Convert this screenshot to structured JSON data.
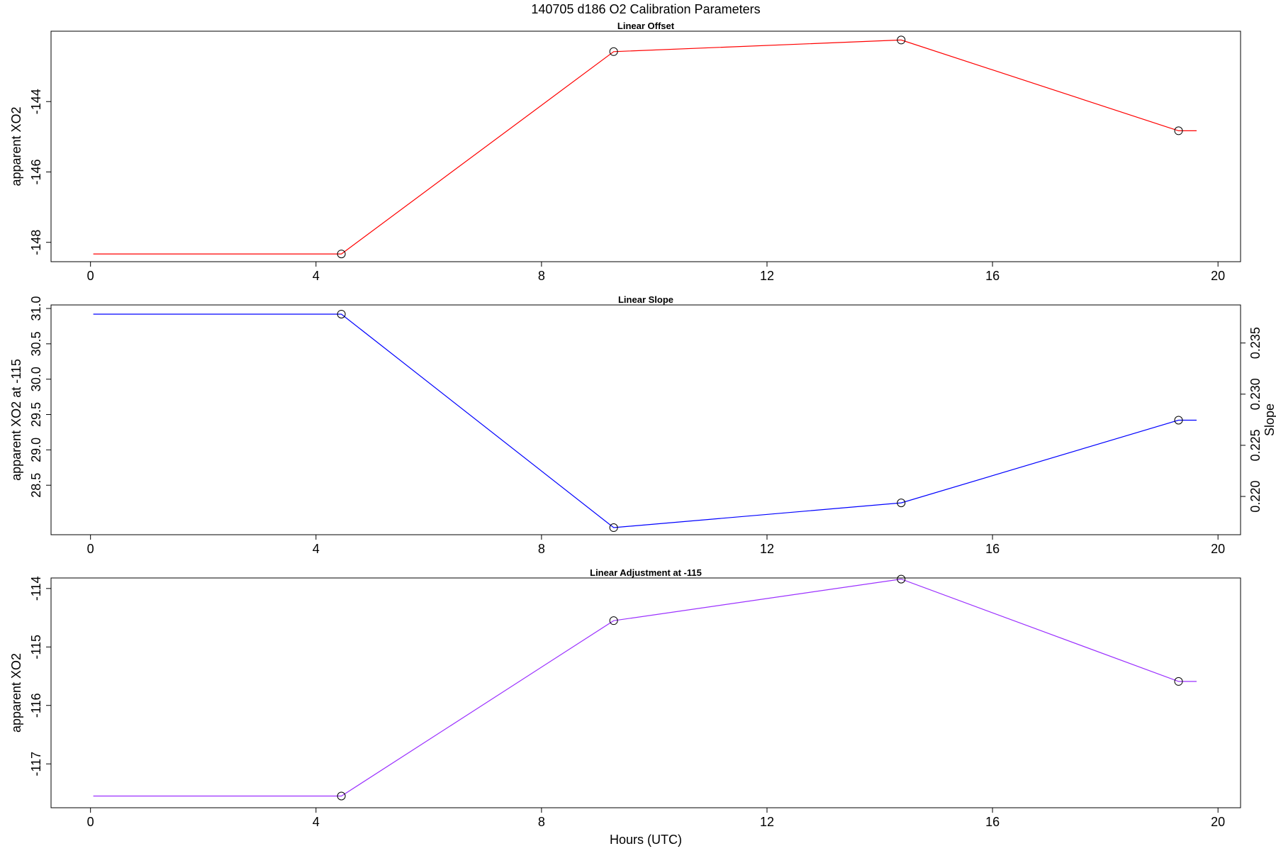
{
  "figure": {
    "title": "140705   d186   O2 Calibration Parameters",
    "xlabel": "Hours (UTC)"
  },
  "chart_data": [
    {
      "type": "line",
      "title": "Linear Offset",
      "xlabel": "",
      "ylabel": "apparent XO2",
      "color": "#ff0000",
      "xlim": [
        -0.7,
        20.4
      ],
      "ylim": [
        -148.55,
        -142.0
      ],
      "xticks": [
        0,
        4,
        8,
        12,
        16,
        20
      ],
      "yticks": [
        -148,
        -146,
        -144
      ],
      "x": [
        4.45,
        9.28,
        14.38,
        19.3
      ],
      "values": [
        -148.33,
        -142.58,
        -142.25,
        -144.83
      ],
      "line_start_x": 0.05,
      "line_end_x": 19.62
    },
    {
      "type": "line",
      "title": "Linear Slope",
      "xlabel": "",
      "ylabel": "apparent XO2 at -115",
      "ylabel_right": "Slope",
      "color": "#0000ff",
      "xlim": [
        -0.7,
        20.4
      ],
      "ylim": [
        27.8,
        31.05
      ],
      "xticks": [
        0,
        4,
        8,
        12,
        16,
        20
      ],
      "yticks": [
        28.5,
        29.0,
        29.5,
        30.0,
        30.5,
        31.0
      ],
      "ytick_labels": [
        "28.5",
        "29.0",
        "29.5",
        "30.0",
        "30.5",
        "31.0"
      ],
      "yticks_right": [
        0.22,
        0.225,
        0.23,
        0.235
      ],
      "ytick_right_labels": [
        "0.220",
        "0.225",
        "0.230",
        "0.235"
      ],
      "ylim_right": [
        0.21626,
        0.23872
      ],
      "x": [
        4.45,
        9.28,
        14.38,
        19.3
      ],
      "values": [
        30.92,
        27.9,
        28.25,
        29.42
      ],
      "line_start_x": 0.05,
      "line_end_x": 19.62
    },
    {
      "type": "line",
      "title": "Linear Adjustment at -115",
      "xlabel": "Hours (UTC)",
      "ylabel": "apparent XO2",
      "color": "#9b30ff",
      "xlim": [
        -0.7,
        20.4
      ],
      "ylim": [
        -117.75,
        -113.82
      ],
      "xticks": [
        0,
        4,
        8,
        12,
        16,
        20
      ],
      "yticks": [
        -117,
        -116,
        -115,
        -114
      ],
      "x": [
        4.45,
        9.28,
        14.38,
        19.3
      ],
      "values": [
        -117.55,
        -114.55,
        -113.84,
        -115.59
      ],
      "line_start_x": 0.05,
      "line_end_x": 19.62
    }
  ]
}
